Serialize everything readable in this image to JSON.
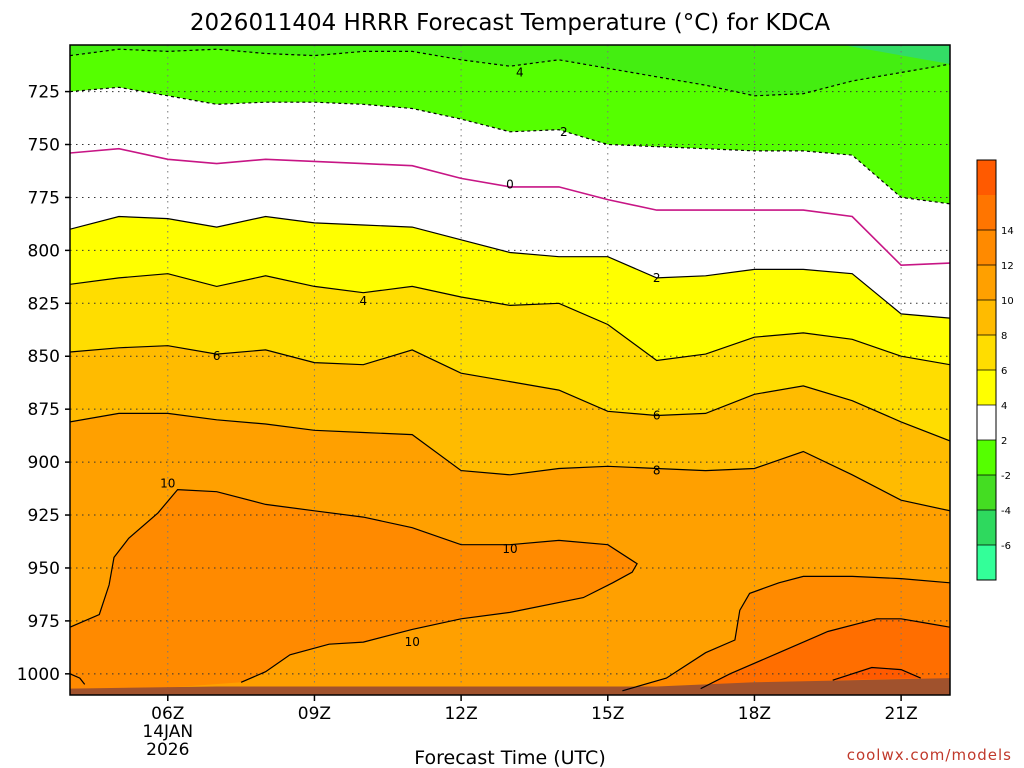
{
  "chart_data": {
    "type": "heatmap",
    "title": "2026011404 HRRR Forecast Temperature (°C) for KDCA",
    "xlabel": "Forecast Time (UTC)",
    "ylabel": "",
    "source": "coolwx.com/models",
    "x_hours": [
      4,
      22
    ],
    "x_ticks": [
      {
        "hour": 6,
        "label": "06Z",
        "date": "14JAN",
        "year": "2026"
      },
      {
        "hour": 9,
        "label": "09Z"
      },
      {
        "hour": 12,
        "label": "12Z"
      },
      {
        "hour": 15,
        "label": "15Z"
      },
      {
        "hour": 18,
        "label": "18Z"
      },
      {
        "hour": 21,
        "label": "21Z"
      }
    ],
    "y_pressure_range": [
      1010,
      703
    ],
    "y_ticks": [
      725,
      750,
      775,
      800,
      825,
      850,
      875,
      900,
      925,
      950,
      975,
      1000
    ],
    "colorbar": {
      "levels": [
        -8,
        -6,
        -4,
        -2,
        2,
        4,
        6,
        8,
        10,
        12,
        14,
        16
      ],
      "colors": [
        "#33ff99",
        "#2ed95e",
        "#44dd22",
        "#55ff00",
        "#ffffff",
        "#ffff00",
        "#ffdd00",
        "#ffbb00",
        "#ffa000",
        "#ff8a00",
        "#ff7500",
        "#ff5a00"
      ],
      "labels": [
        "-6",
        "-4",
        "-2",
        "2",
        "4",
        "6",
        "8",
        "10",
        "12",
        "14"
      ]
    },
    "ground_color": "#a0522d",
    "contours": [
      {
        "value": 4,
        "label": "4",
        "label_hour": 13.2,
        "label_p": 716,
        "style": "dashed",
        "points": [
          [
            4.0,
            708
          ],
          [
            5.0,
            705
          ],
          [
            6.0,
            706
          ],
          [
            7.0,
            705
          ],
          [
            8.0,
            707
          ],
          [
            9.0,
            708
          ],
          [
            10.0,
            706
          ],
          [
            11.0,
            706
          ],
          [
            12.0,
            710
          ],
          [
            13.0,
            713
          ],
          [
            14.0,
            710
          ],
          [
            15.0,
            714
          ],
          [
            16.0,
            718
          ],
          [
            17.0,
            722
          ],
          [
            18.0,
            727
          ],
          [
            19.0,
            726
          ],
          [
            20.0,
            720
          ],
          [
            21.0,
            716
          ],
          [
            22.0,
            712
          ]
        ]
      },
      {
        "value": 2,
        "label": "2",
        "label_hour": 14.1,
        "label_p": 744,
        "style": "dashed",
        "points": [
          [
            4.0,
            725
          ],
          [
            5.0,
            723
          ],
          [
            6.0,
            727
          ],
          [
            7.0,
            731
          ],
          [
            8.0,
            730
          ],
          [
            9.0,
            730
          ],
          [
            10.0,
            731
          ],
          [
            11.0,
            733
          ],
          [
            12.0,
            738
          ],
          [
            13.0,
            744
          ],
          [
            14.0,
            743
          ],
          [
            15.0,
            750
          ],
          [
            16.0,
            751
          ],
          [
            17.0,
            752
          ],
          [
            18.0,
            753
          ],
          [
            19.0,
            753
          ],
          [
            20.0,
            755
          ],
          [
            21.0,
            775
          ],
          [
            22.0,
            778
          ]
        ]
      },
      {
        "value": 0,
        "label": "0",
        "label_hour": 13.0,
        "label_p": 769,
        "style": "solid",
        "color": "#c71585",
        "points": [
          [
            4.0,
            754
          ],
          [
            5.0,
            752
          ],
          [
            6.0,
            757
          ],
          [
            7.0,
            759
          ],
          [
            8.0,
            757
          ],
          [
            9.0,
            758
          ],
          [
            10.0,
            759
          ],
          [
            11.0,
            760
          ],
          [
            12.0,
            766
          ],
          [
            13.0,
            770
          ],
          [
            14.0,
            770
          ],
          [
            15.0,
            776
          ],
          [
            16.0,
            781
          ],
          [
            17.0,
            781
          ],
          [
            18.0,
            781
          ],
          [
            19.0,
            781
          ],
          [
            20.0,
            784
          ],
          [
            21.0,
            807
          ],
          [
            22.0,
            806
          ]
        ]
      },
      {
        "value": 2,
        "label": "2",
        "label_hour": 16.0,
        "label_p": 813,
        "style": "solid",
        "points": [
          [
            4.0,
            790
          ],
          [
            5.0,
            784
          ],
          [
            6.0,
            785
          ],
          [
            7.0,
            789
          ],
          [
            8.0,
            784
          ],
          [
            9.0,
            787
          ],
          [
            10.0,
            788
          ],
          [
            11.0,
            789
          ],
          [
            12.0,
            795
          ],
          [
            13.0,
            801
          ],
          [
            14.0,
            803
          ],
          [
            15.0,
            803
          ],
          [
            16.0,
            813
          ],
          [
            17.0,
            812
          ],
          [
            18.0,
            809
          ],
          [
            19.0,
            809
          ],
          [
            20.0,
            811
          ],
          [
            21.0,
            830
          ],
          [
            22.0,
            832
          ]
        ]
      },
      {
        "value": 4,
        "label": "4",
        "label_hour": 10.0,
        "label_p": 824,
        "style": "solid",
        "points": [
          [
            4.0,
            816
          ],
          [
            5.0,
            813
          ],
          [
            6.0,
            811
          ],
          [
            7.0,
            817
          ],
          [
            8.0,
            812
          ],
          [
            9.0,
            817
          ],
          [
            10.0,
            820
          ],
          [
            11.0,
            817
          ],
          [
            12.0,
            822
          ],
          [
            13.0,
            826
          ],
          [
            14.0,
            825
          ],
          [
            15.0,
            835
          ],
          [
            16.0,
            852
          ],
          [
            17.0,
            849
          ],
          [
            18.0,
            841
          ],
          [
            19.0,
            839
          ],
          [
            20.0,
            842
          ],
          [
            21.0,
            850
          ],
          [
            22.0,
            854
          ]
        ]
      },
      {
        "value": 6,
        "label": "6",
        "label_hour": 7.0,
        "label_p": 850,
        "style": "solid",
        "points": [
          [
            4.0,
            848
          ],
          [
            5.0,
            846
          ],
          [
            6.0,
            845
          ],
          [
            7.0,
            849
          ],
          [
            8.0,
            847
          ],
          [
            9.0,
            853
          ],
          [
            10.0,
            854
          ],
          [
            11.0,
            847
          ],
          [
            12.0,
            858
          ],
          [
            13.0,
            862
          ],
          [
            14.0,
            866
          ],
          [
            15.0,
            876
          ],
          [
            16.0,
            878
          ],
          [
            17.0,
            877
          ],
          [
            18.0,
            868
          ],
          [
            19.0,
            864
          ],
          [
            20.0,
            871
          ],
          [
            21.0,
            881
          ],
          [
            22.0,
            890
          ]
        ]
      },
      {
        "value": 6,
        "label": "6",
        "label_hour": 16.0,
        "label_p": 878,
        "style": "hidden",
        "points": []
      },
      {
        "value": 8,
        "label": "8",
        "label_hour": 16.0,
        "label_p": 904,
        "style": "solid",
        "points": [
          [
            4.0,
            881
          ],
          [
            5.0,
            877
          ],
          [
            6.0,
            877
          ],
          [
            7.0,
            880
          ],
          [
            8.0,
            882
          ],
          [
            9.0,
            885
          ],
          [
            10.0,
            886
          ],
          [
            11.0,
            887
          ],
          [
            12.0,
            904
          ],
          [
            13.0,
            906
          ],
          [
            14.0,
            903
          ],
          [
            15.0,
            902
          ],
          [
            16.0,
            903
          ],
          [
            17.0,
            904
          ],
          [
            18.0,
            903
          ],
          [
            19.0,
            895
          ],
          [
            20.0,
            906
          ],
          [
            21.0,
            918
          ],
          [
            22.0,
            923
          ]
        ]
      },
      {
        "value": 10,
        "label": "10",
        "label_hour": 6.0,
        "label_p": 910,
        "style": "solid",
        "points": [
          [
            4.0,
            978
          ],
          [
            4.6,
            972
          ],
          [
            4.8,
            958
          ],
          [
            4.9,
            945
          ],
          [
            5.2,
            936
          ],
          [
            5.8,
            924
          ],
          [
            6.2,
            913
          ],
          [
            7.0,
            914
          ],
          [
            8.0,
            920
          ],
          [
            9.0,
            923
          ],
          [
            10.0,
            926
          ],
          [
            11.0,
            931
          ],
          [
            12.0,
            939
          ],
          [
            13.0,
            939
          ],
          [
            14.0,
            937
          ],
          [
            15.0,
            939
          ],
          [
            15.6,
            948
          ],
          [
            15.5,
            952
          ],
          [
            15.1,
            957
          ],
          [
            14.5,
            964
          ],
          [
            13.0,
            971
          ],
          [
            12.0,
            974
          ],
          [
            11.0,
            979
          ],
          [
            10.0,
            985
          ],
          [
            9.3,
            986
          ],
          [
            8.5,
            991
          ],
          [
            8.0,
            999
          ],
          [
            7.5,
            1004
          ]
        ]
      },
      {
        "value": 10,
        "label": "10",
        "label_hour": 13.0,
        "label_p": 941,
        "style": "hidden",
        "points": []
      },
      {
        "value": 10,
        "label": "10",
        "label_hour": 11.0,
        "label_p": 985,
        "style": "hidden",
        "points": []
      },
      {
        "value": 10,
        "label": "",
        "label_hour": 4.2,
        "label_p": 1002,
        "style": "solid",
        "points": [
          [
            4.0,
            1000
          ],
          [
            4.2,
            1002
          ],
          [
            4.3,
            1005
          ]
        ]
      },
      {
        "value": 12,
        "label": "",
        "label_hour": 18.0,
        "label_p": 960,
        "style": "solid",
        "points": [
          [
            15.3,
            1008
          ],
          [
            16.2,
            1002
          ],
          [
            17.0,
            990
          ],
          [
            17.6,
            984
          ],
          [
            17.7,
            970
          ],
          [
            17.9,
            962
          ],
          [
            18.5,
            957
          ],
          [
            19.0,
            954
          ],
          [
            20.0,
            954
          ],
          [
            21.0,
            955
          ],
          [
            22.0,
            957
          ]
        ]
      },
      {
        "value": 14,
        "label": "",
        "label_hour": 20.0,
        "label_p": 990,
        "style": "solid",
        "points": [
          [
            16.9,
            1007
          ],
          [
            17.5,
            1000
          ],
          [
            18.5,
            990
          ],
          [
            19.5,
            980
          ],
          [
            20.5,
            974
          ],
          [
            21.0,
            974
          ],
          [
            21.5,
            976
          ],
          [
            22.0,
            978
          ]
        ]
      },
      {
        "value": 16,
        "label": "",
        "label_hour": 20.5,
        "label_p": 1000,
        "style": "solid",
        "points": [
          [
            19.6,
            1003
          ],
          [
            20.4,
            997
          ],
          [
            21.0,
            998
          ],
          [
            21.4,
            1002
          ]
        ]
      }
    ],
    "ground_pressure": [
      [
        4.0,
        1007
      ],
      [
        7.0,
        1006
      ],
      [
        10.0,
        1006
      ],
      [
        13.0,
        1006
      ],
      [
        16.0,
        1006
      ],
      [
        18.0,
        1004
      ],
      [
        20.0,
        1003
      ],
      [
        22.0,
        1002
      ]
    ]
  }
}
